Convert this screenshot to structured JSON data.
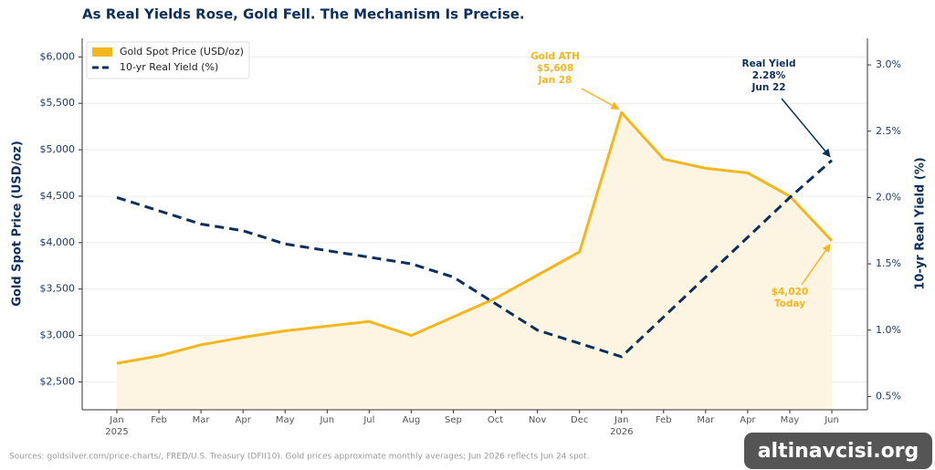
{
  "chart_data": {
    "type": "line",
    "title": "As Real Yields Rose, Gold Fell. The Mechanism Is Precise.",
    "categories": [
      "Jan\n2025",
      "Feb",
      "Mar",
      "Apr",
      "May",
      "Jun",
      "Jul",
      "Aug",
      "Sep",
      "Oct",
      "Nov",
      "Dec",
      "Jan\n2026",
      "Feb",
      "Mar",
      "Apr",
      "May",
      "Jun"
    ],
    "y_label": "Gold Spot Price (USD/oz)",
    "y2_label": "10-yr Real Yield (%)",
    "series": [
      {
        "name": "Gold Spot Price (USD/oz)",
        "color": "#f4b61f",
        "fill": "#fdf5e1",
        "axis": "y",
        "values": [
          2700,
          2780,
          2900,
          2980,
          3050,
          3100,
          3150,
          3000,
          3200,
          3400,
          3650,
          3900,
          5400,
          4900,
          4800,
          4750,
          4500,
          4020
        ]
      },
      {
        "name": "10-yr Real Yield (%)",
        "color": "#0d2f5e",
        "axis": "y2",
        "dashed": true,
        "values": [
          2.0,
          1.9,
          1.8,
          1.75,
          1.65,
          1.6,
          1.55,
          1.5,
          1.4,
          1.2,
          1.0,
          0.9,
          0.8,
          1.1,
          1.4,
          1.7,
          2.0,
          2.28
        ]
      }
    ],
    "ylim": [
      2200,
      6200
    ],
    "yticks": [
      {
        "value": 2500,
        "label": "$2,500"
      },
      {
        "value": 3000,
        "label": "$3,000"
      },
      {
        "value": 3500,
        "label": "$3,500"
      },
      {
        "value": 4000,
        "label": "$4,000"
      },
      {
        "value": 4500,
        "label": "$4,500"
      },
      {
        "value": 5000,
        "label": "$5,000"
      },
      {
        "value": 5500,
        "label": "$5,500"
      },
      {
        "value": 6000,
        "label": "$6,000"
      }
    ],
    "y2lim": [
      0.4,
      3.2
    ],
    "y2ticks": [
      {
        "value": 0.5,
        "label": "0.5%"
      },
      {
        "value": 1.0,
        "label": "1.0%"
      },
      {
        "value": 1.5,
        "label": "1.5%"
      },
      {
        "value": 2.0,
        "label": "2.0%"
      },
      {
        "value": 2.5,
        "label": "2.5%"
      },
      {
        "value": 3.0,
        "label": "3.0%"
      }
    ],
    "grid": true,
    "legend": "upper-left",
    "annotations": [
      {
        "lines": [
          "Gold ATH",
          "$5,608",
          "Jan 28"
        ],
        "color": "#f4b61f"
      },
      {
        "lines": [
          "Real Yield",
          "2.28%",
          "Jun 22"
        ],
        "color": "#0d2f5e"
      },
      {
        "lines": [
          "$4,020",
          "Today"
        ],
        "color": "#f4b61f"
      }
    ],
    "source": "Sources: goldsilver.com/price-charts/, FRED/U.S. Treasury (DFII10). Gold prices approximate monthly averages; Jun 2026 reflects Jun 24 spot.",
    "watermark": "altinavcisi.org"
  }
}
